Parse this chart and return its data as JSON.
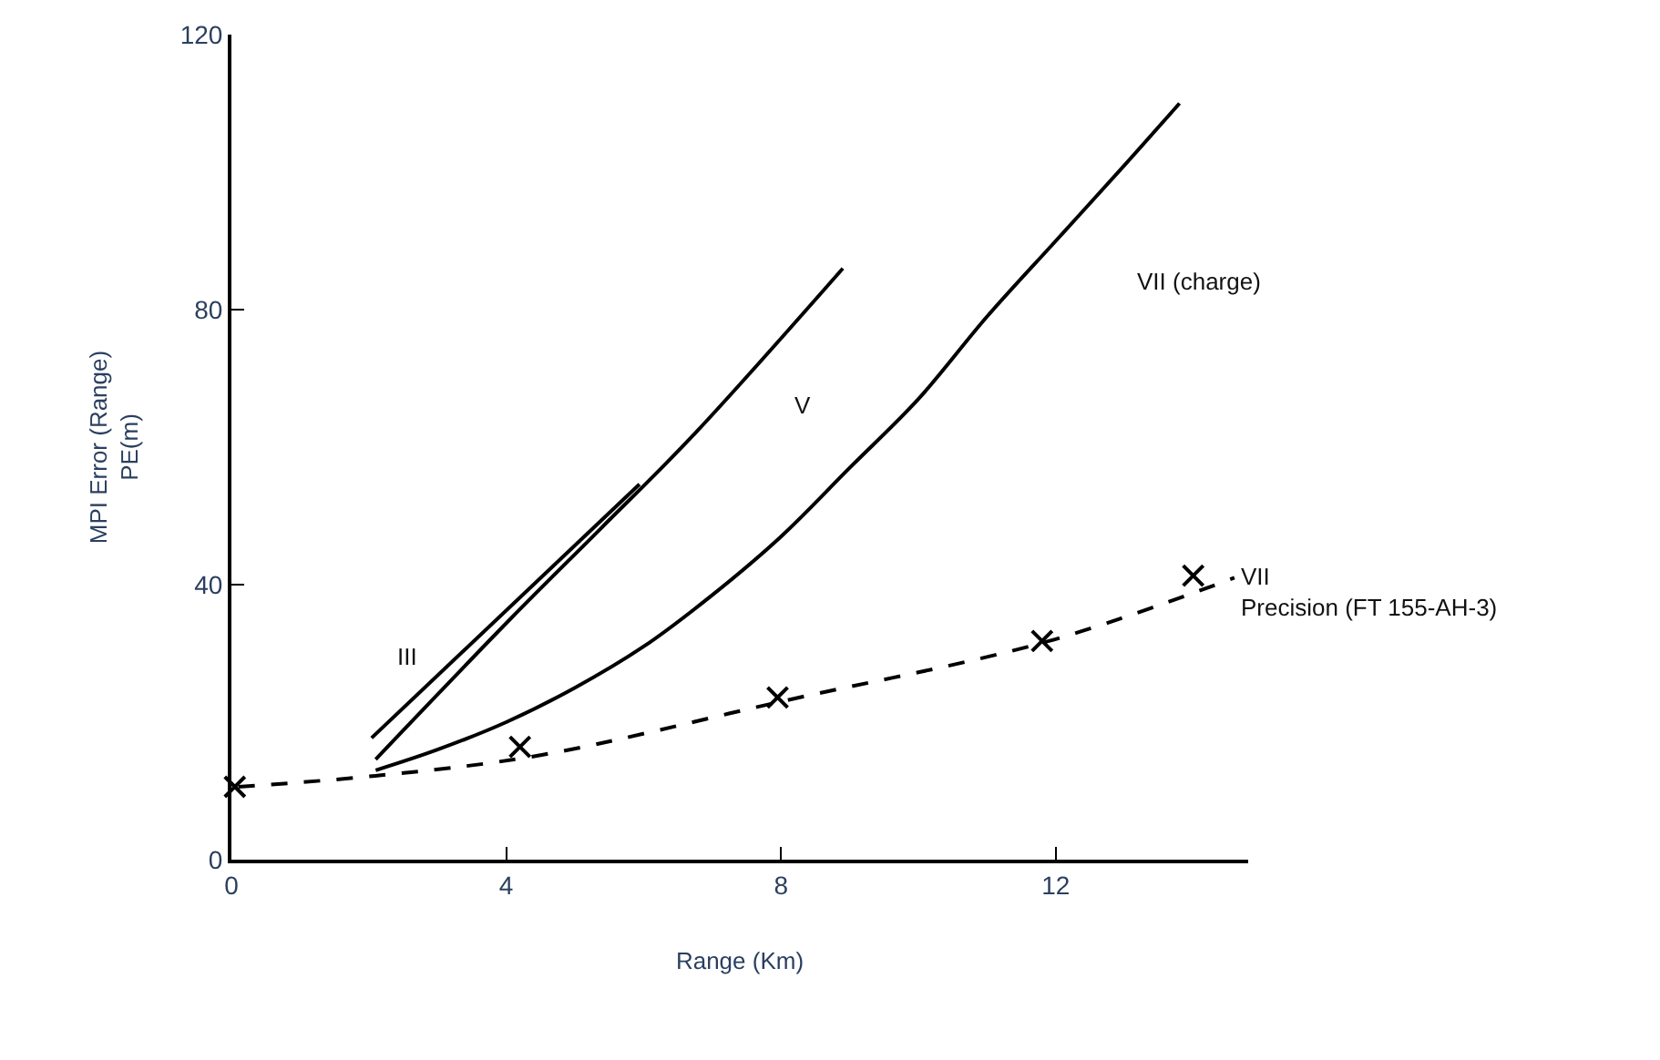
{
  "chart_data": {
    "type": "line",
    "xlabel": "Range (Km)",
    "ylabel": "MPI Error (Range)\nPE(m)",
    "xlim": [
      0,
      14.8
    ],
    "ylim": [
      0,
      120
    ],
    "xticks": [
      0,
      4,
      8,
      12
    ],
    "yticks": [
      0,
      40,
      80,
      120
    ],
    "series": [
      {
        "color": "#000000",
        "line_style": "solid",
        "x": [
          2.04,
          5.94
        ],
        "values": [
          17.7,
          54.6
        ]
      },
      {
        "color": "#000000",
        "line_style": "solid",
        "x": [
          2.1,
          4.06,
          5.38,
          6.7,
          8.9
        ],
        "values": [
          14.6,
          35,
          48.2,
          61.5,
          86
        ]
      },
      {
        "color": "#000000",
        "line_style": "solid",
        "x": [
          2.1,
          3,
          4,
          5,
          6,
          7,
          8,
          9,
          10,
          11,
          12,
          13,
          13.8
        ],
        "values": [
          13,
          16,
          20,
          25,
          31,
          38.5,
          47,
          57,
          67,
          79,
          90,
          101,
          110
        ]
      },
      {
        "color": "#000000",
        "line_style": "dashed",
        "x": [
          0.1,
          2.1,
          4.5,
          8,
          11.9,
          14.6
        ],
        "values": [
          10.6,
          12.2,
          15.2,
          23,
          31.8,
          41
        ]
      },
      {
        "type": "scatter",
        "marker": "cross",
        "color": "#000000",
        "x": [
          0.05,
          4.2,
          7.95,
          11.8,
          14.0
        ],
        "values": [
          10.6,
          16.4,
          23.6,
          31.8,
          41.3
        ]
      }
    ],
    "annotations": [
      "III",
      "V",
      "VII (charge)",
      "VII\nPrecision (FT 155-AH-3)"
    ]
  }
}
